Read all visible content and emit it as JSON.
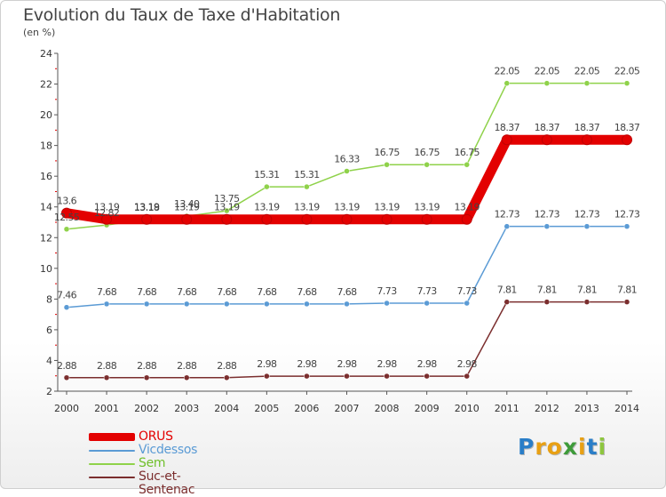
{
  "header": {
    "title": "Evolution du Taux de Taxe d'Habitation",
    "unit": "(en %)"
  },
  "logo": {
    "text": "Proxiti",
    "letters": [
      "P",
      "r",
      "o",
      "x",
      "i",
      "t",
      "i"
    ],
    "colors": [
      "#2a7ec8",
      "#e8a014",
      "#e8a014",
      "#3e9b3a",
      "#e8a014",
      "#2a7ec8",
      "#8ec63f"
    ]
  },
  "chart_data": {
    "type": "line",
    "title": "Evolution du Taux de Taxe d'Habitation",
    "ylabel": "(en %)",
    "xlabel": "",
    "x": [
      "2000",
      "2001",
      "2002",
      "2003",
      "2004",
      "2005",
      "2006",
      "2007",
      "2008",
      "2009",
      "2010",
      "2011",
      "2012",
      "2013",
      "2014"
    ],
    "ylim": [
      2,
      24
    ],
    "yticks": [
      2,
      4,
      6,
      8,
      10,
      12,
      14,
      16,
      18,
      20,
      22,
      24
    ],
    "grid": false,
    "legend": "bottom-left",
    "series": [
      {
        "name": "ORUS",
        "color": "#e30000",
        "values": [
          13.6,
          13.19,
          13.19,
          13.19,
          13.19,
          13.19,
          13.19,
          13.19,
          13.19,
          13.19,
          13.19,
          18.37,
          18.37,
          18.37,
          18.37
        ],
        "labels": [
          "13.6",
          "13.19",
          "13.19",
          "13.19",
          "13.19",
          "13.19",
          "13.19",
          "13.19",
          "13.19",
          "13.19",
          "13.19",
          "18.37",
          "18.37",
          "18.37",
          "18.37"
        ]
      },
      {
        "name": "Vicdessos",
        "color": "#5b9bd5",
        "values": [
          7.46,
          7.68,
          7.68,
          7.68,
          7.68,
          7.68,
          7.68,
          7.68,
          7.73,
          7.73,
          7.73,
          12.73,
          12.73,
          12.73,
          12.73
        ],
        "labels": [
          "7.46",
          "7.68",
          "7.68",
          "7.68",
          "7.68",
          "7.68",
          "7.68",
          "7.68",
          "7.73",
          "7.73",
          "7.73",
          "12.73",
          "12.73",
          "12.73",
          "12.73"
        ]
      },
      {
        "name": "Sem",
        "color": "#8fd24a",
        "values": [
          12.55,
          12.82,
          13.18,
          13.4,
          13.75,
          15.31,
          15.31,
          16.33,
          16.75,
          16.75,
          16.75,
          22.05,
          22.05,
          22.05,
          22.05
        ],
        "labels": [
          "12.55",
          "12.82",
          "13.18",
          "13.40",
          "13.75",
          "15.31",
          "15.31",
          "16.33",
          "16.75",
          "16.75",
          "16.75",
          "22.05",
          "22.05",
          "22.05",
          "22.05"
        ]
      },
      {
        "name": "Suc-et-Sentenac",
        "color": "#7b2e2e",
        "values": [
          2.88,
          2.88,
          2.88,
          2.88,
          2.88,
          2.98,
          2.98,
          2.98,
          2.98,
          2.98,
          2.98,
          7.81,
          7.81,
          7.81,
          7.81
        ],
        "labels": [
          "2.88",
          "2.88",
          "2.88",
          "2.88",
          "2.88",
          "2.98",
          "2.98",
          "2.98",
          "2.98",
          "2.98",
          "2.98",
          "7.81",
          "7.81",
          "7.81",
          "7.81"
        ]
      }
    ]
  }
}
